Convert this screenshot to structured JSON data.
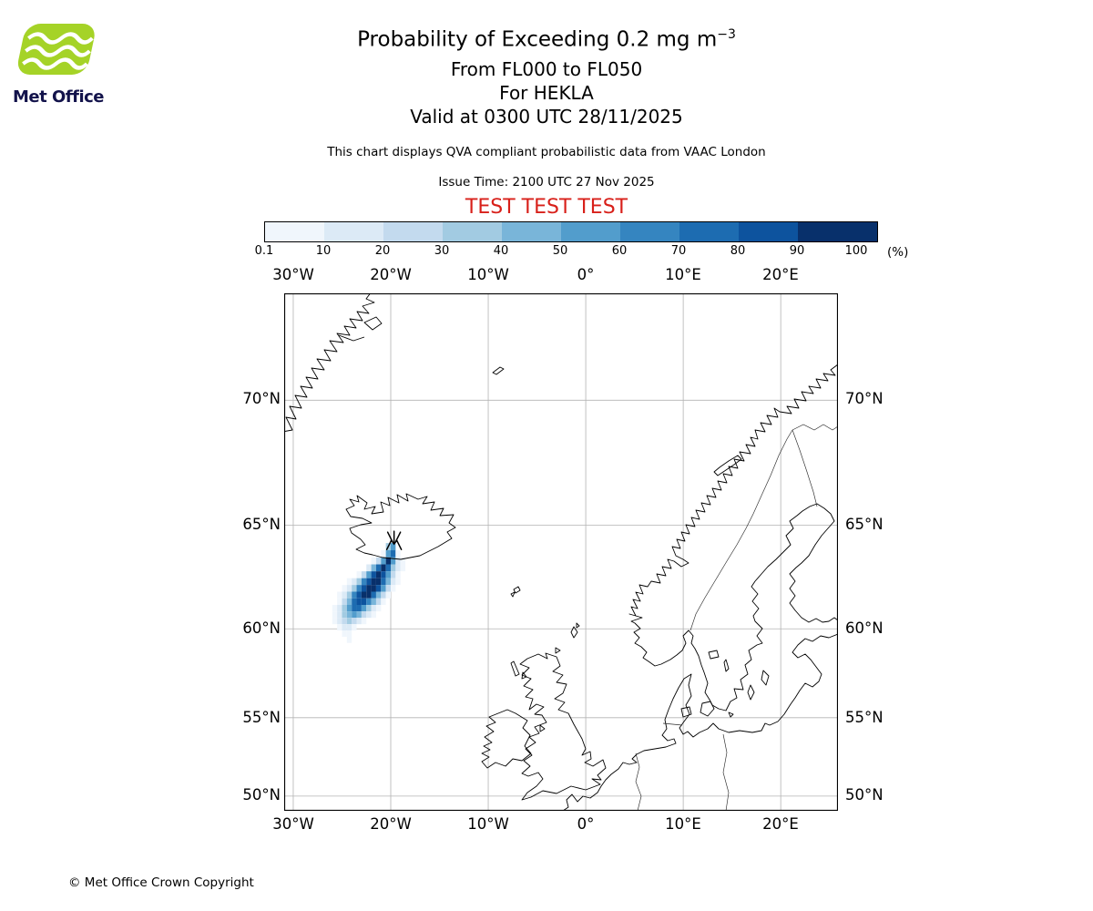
{
  "header": {
    "logo_text": "Met Office",
    "title": "Probability of Exceeding 0.2 mg m",
    "title_sup": "−3",
    "line_flight_levels": "From FL000 to FL050",
    "line_volcano": "For HEKLA",
    "line_valid": "Valid at 0300 UTC 28/11/2025",
    "description": "This chart displays QVA compliant probabilistic data from VAAC London",
    "issue_time": "Issue Time: 2100 UTC 27 Nov 2025",
    "test_banner": "TEST TEST TEST"
  },
  "colors": {
    "test_banner": "#d8201a",
    "logo_green": "#a5d327",
    "logo_text": "#13134b"
  },
  "colorbar": {
    "unit": "(%)",
    "tick_labels": [
      "0.1",
      "10",
      "20",
      "30",
      "40",
      "50",
      "60",
      "70",
      "80",
      "90",
      "100"
    ],
    "colors": [
      "#f0f6fc",
      "#dceaf6",
      "#c3daee",
      "#a2cbe2",
      "#79b5d9",
      "#529dcc",
      "#3585c0",
      "#1d6cb1",
      "#0d539e",
      "#08306b"
    ]
  },
  "map": {
    "x_tick_labels": [
      "30°W",
      "20°W",
      "10°W",
      "0°",
      "10°E",
      "20°E"
    ],
    "y_tick_labels": [
      "70°N",
      "65°N",
      "60°N",
      "55°N",
      "50°N"
    ]
  },
  "footer": {
    "copyright": "© Met Office Crown Copyright"
  },
  "chart_data": {
    "type": "heatmap",
    "title": "Probability of Exceeding 0.2 mg m⁻³",
    "subtitle": [
      "From FL000 to FL050",
      "For HEKLA",
      "Valid at 0300 UTC 28/11/2025"
    ],
    "source_note": "This chart displays QVA compliant probabilistic data from VAAC London",
    "issue_time": "2100 UTC 27 Nov 2025",
    "valid_time": "0300 UTC 28/11/2025",
    "flight_levels": "FL000 to FL050",
    "volcano_name": "HEKLA",
    "threshold": "0.2 mg m⁻³",
    "unit": "%",
    "colorbar_levels": [
      0.1,
      10,
      20,
      30,
      40,
      50,
      60,
      70,
      80,
      90,
      100
    ],
    "projection": "mercator",
    "map_extent": {
      "lon_min": -30.93,
      "lon_max": 25.87,
      "lat_min": 49.0,
      "lat_max": 73.5
    },
    "x_ticks_deg": [
      -30,
      -20,
      -10,
      0,
      10,
      20
    ],
    "y_ticks_deg": [
      70,
      65,
      60,
      55,
      50
    ],
    "volcano": {
      "name": "HEKLA",
      "lon": -19.66,
      "lat": 63.99
    },
    "plume_grid": {
      "comment": "Probability buckets per 0.5x0.33 deg cell: 1=0.1-10% ... 9=80-90%, A=90-100%, .=below 0.1%",
      "lon_origin": -26.5,
      "dlon": 0.5,
      "lat_origin": 64.2,
      "dlat": 0.33,
      "rows": [
        "............46......",
        "...........1681.....",
        ".........136A621....",
        "........258A8421....",
        "......1369A9631.....",
        "....12479AA8521.....",
        "...12479AA9631......",
        "..12479AA8531.......",
        "..1358997531........",
        ".1246886421.........",
        ".124565321..........",
        ".1234321............",
        "..1221..............",
        "...11...............",
        "....1..............."
      ]
    }
  }
}
